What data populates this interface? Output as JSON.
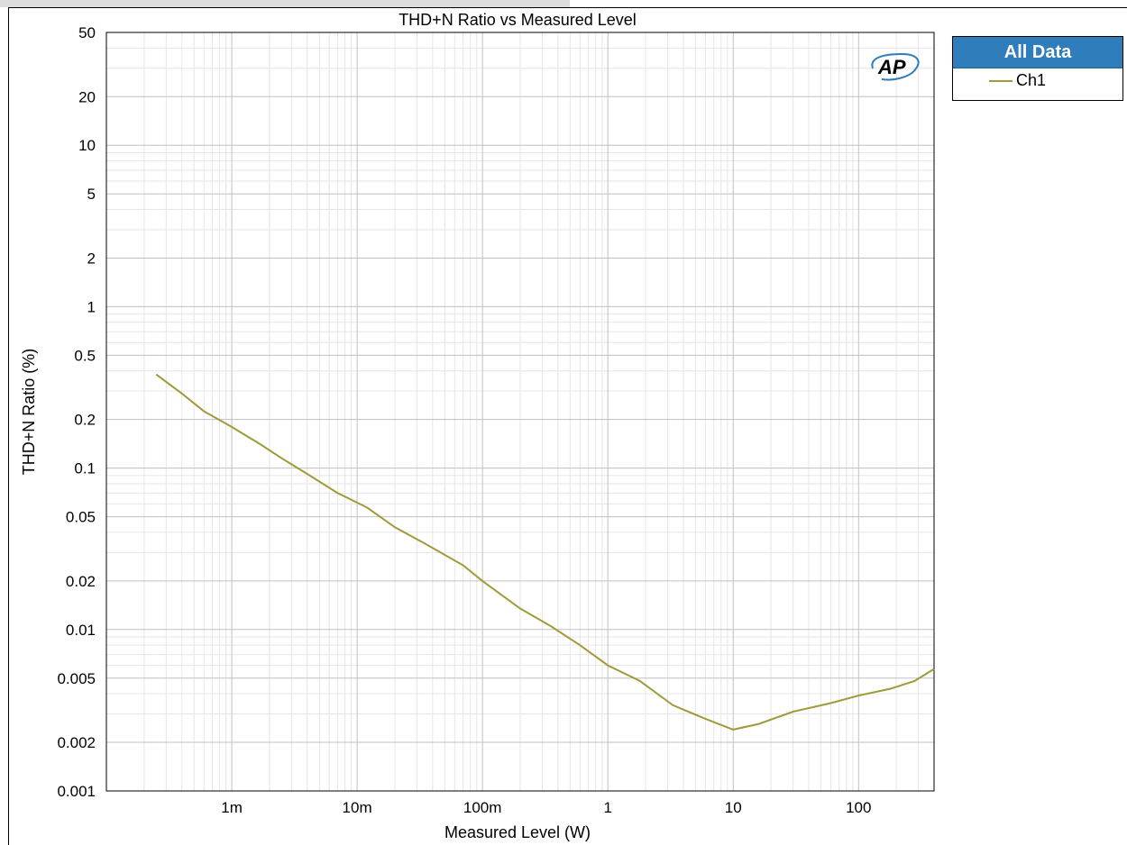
{
  "chart_data": {
    "type": "line",
    "title": "THD+N Ratio vs Measured Level",
    "xlabel": "Measured Level (W)",
    "ylabel": "THD+N Ratio (%)",
    "x_scale": "log",
    "y_scale": "log",
    "xlim": [
      0.0001,
      400
    ],
    "ylim": [
      0.001,
      50
    ],
    "grid": true,
    "x_ticks": [
      {
        "value": 0.001,
        "label": "1m"
      },
      {
        "value": 0.01,
        "label": "10m"
      },
      {
        "value": 0.1,
        "label": "100m"
      },
      {
        "value": 1,
        "label": "1"
      },
      {
        "value": 10,
        "label": "10"
      },
      {
        "value": 100,
        "label": "100"
      }
    ],
    "y_ticks": [
      {
        "value": 50,
        "label": "50"
      },
      {
        "value": 20,
        "label": "20"
      },
      {
        "value": 10,
        "label": "10"
      },
      {
        "value": 5,
        "label": "5"
      },
      {
        "value": 2,
        "label": "2"
      },
      {
        "value": 1,
        "label": "1"
      },
      {
        "value": 0.5,
        "label": "0.5"
      },
      {
        "value": 0.2,
        "label": "0.2"
      },
      {
        "value": 0.1,
        "label": "0.1"
      },
      {
        "value": 0.05,
        "label": "0.05"
      },
      {
        "value": 0.02,
        "label": "0.02"
      },
      {
        "value": 0.01,
        "label": "0.01"
      },
      {
        "value": 0.005,
        "label": "0.005"
      },
      {
        "value": 0.002,
        "label": "0.002"
      },
      {
        "value": 0.001,
        "label": "0.001"
      }
    ],
    "legend": {
      "title": "All Data",
      "placement": "top-right-outside"
    },
    "series": [
      {
        "name": "Ch1",
        "color": "#a09a3a",
        "points": [
          [
            0.00025,
            0.38
          ],
          [
            0.0004,
            0.29
          ],
          [
            0.0006,
            0.225
          ],
          [
            0.001,
            0.18
          ],
          [
            0.0017,
            0.14
          ],
          [
            0.0025,
            0.115
          ],
          [
            0.004,
            0.092
          ],
          [
            0.007,
            0.07
          ],
          [
            0.012,
            0.057
          ],
          [
            0.02,
            0.043
          ],
          [
            0.035,
            0.034
          ],
          [
            0.07,
            0.025
          ],
          [
            0.1,
            0.02
          ],
          [
            0.2,
            0.0135
          ],
          [
            0.35,
            0.0105
          ],
          [
            0.6,
            0.008
          ],
          [
            1.0,
            0.006
          ],
          [
            1.8,
            0.0048
          ],
          [
            3.3,
            0.0034
          ],
          [
            6,
            0.0028
          ],
          [
            10,
            0.0024
          ],
          [
            16,
            0.0026
          ],
          [
            30,
            0.0031
          ],
          [
            60,
            0.0035
          ],
          [
            100,
            0.0039
          ],
          [
            180,
            0.0043
          ],
          [
            280,
            0.0048
          ],
          [
            400,
            0.0057
          ]
        ]
      }
    ]
  },
  "logo": {
    "text": "AP",
    "color": "#2f7dbb"
  }
}
